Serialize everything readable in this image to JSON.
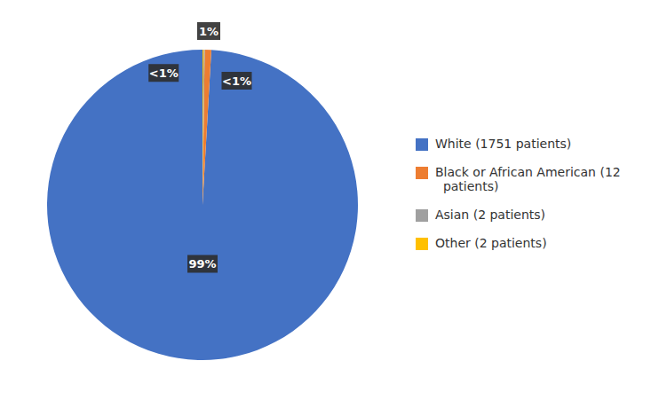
{
  "chart_data": {
    "type": "pie",
    "categories": [
      "White (1751 patients)",
      "Black or African American (12\n  patients)",
      "Asian (2 patients)",
      "Other (2 patients)"
    ],
    "values": [
      1751,
      12,
      2,
      2
    ],
    "value_labels": [
      "99%",
      "1%",
      "<1%",
      "<1%"
    ],
    "colors": [
      "#4472C4",
      "#ED7D31",
      "#A0A0A0",
      "#FFC000"
    ],
    "data_labels": true,
    "legend": "right"
  }
}
